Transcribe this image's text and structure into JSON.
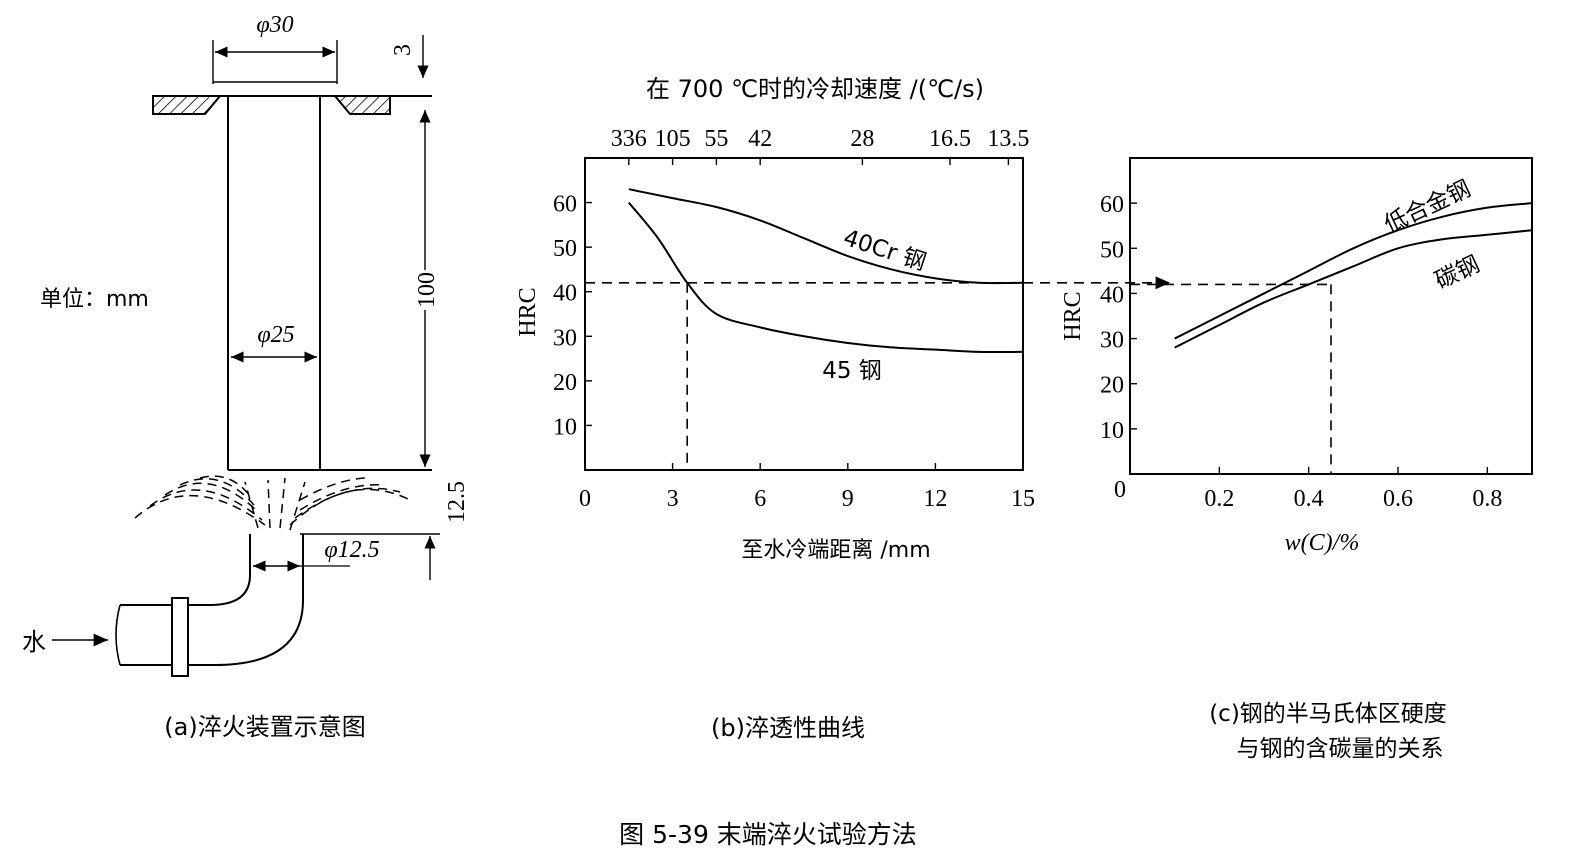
{
  "panel_a": {
    "dim_top_diameter": "φ30",
    "dim_flange": "3",
    "unit_label": "单位：mm",
    "dim_bar_diameter": "φ25",
    "dim_length": "100",
    "dim_gap": "12.5",
    "dim_nozzle": "φ12.5",
    "water_label": "水",
    "caption": "(a)淬火装置示意图"
  },
  "panel_b": {
    "top_axis_title": "在 700 ℃时的冷却速度 /(℃/s)",
    "top_ticks": [
      "336",
      "105",
      "55",
      "42",
      "28",
      "16.5",
      "13.5"
    ],
    "ylabel": "HRC",
    "xlabel": "至水冷端距离 /mm",
    "x_ticks": [
      "0",
      "3",
      "6",
      "9",
      "12",
      "15"
    ],
    "y_ticks": [
      "10",
      "20",
      "30",
      "40",
      "50",
      "60"
    ],
    "series_40cr": "40Cr 钢",
    "series_45": "45 钢",
    "caption": "(b)淬透性曲线"
  },
  "panel_c": {
    "ylabel": "HRC",
    "xlabel": "w(C)/%",
    "x_ticks": [
      "0.2",
      "0.4",
      "0.6",
      "0.8"
    ],
    "y_ticks": [
      "10",
      "20",
      "30",
      "40",
      "50",
      "60"
    ],
    "origin": "0",
    "series_low_alloy": "低合金钢",
    "series_carbon": "碳钢",
    "caption_line1": "(c)钢的半马氏体区硬度",
    "caption_line2": "与钢的含碳量的关系"
  },
  "figure_caption": "图 5-39    末端淬火试验方法",
  "chart_data": [
    {
      "type": "line",
      "xlabel": "至水冷端距离 /mm",
      "ylabel": "HRC",
      "xlim": [
        0,
        15
      ],
      "ylim": [
        0,
        70
      ],
      "series": [
        {
          "name": "40Cr 钢",
          "x": [
            1.5,
            3,
            4.5,
            6,
            7.5,
            9,
            10.5,
            12,
            13.5,
            15
          ],
          "values": [
            63,
            61,
            59,
            56,
            52,
            48,
            45,
            43,
            42,
            42
          ]
        },
        {
          "name": "45 钢",
          "x": [
            1.5,
            2.5,
            3.5,
            4.5,
            6,
            7.5,
            9,
            10.5,
            12,
            13.5,
            15
          ],
          "values": [
            60,
            52,
            42,
            35,
            32,
            30,
            28.5,
            27.5,
            27,
            26.5,
            26.5
          ]
        }
      ],
      "reference": {
        "hrc": 42,
        "distance": 3.5
      }
    },
    {
      "type": "line",
      "xlabel": "w(C)/%",
      "ylabel": "HRC",
      "xlim": [
        0,
        0.9
      ],
      "ylim": [
        0,
        70
      ],
      "series": [
        {
          "name": "低合金钢",
          "x": [
            0.1,
            0.2,
            0.3,
            0.4,
            0.5,
            0.6,
            0.7,
            0.8,
            0.9
          ],
          "values": [
            30,
            35,
            40,
            45,
            50,
            54,
            57,
            59,
            60
          ]
        },
        {
          "name": "碳钢",
          "x": [
            0.1,
            0.2,
            0.3,
            0.4,
            0.5,
            0.6,
            0.7,
            0.8,
            0.9
          ],
          "values": [
            28,
            33,
            38,
            42,
            46,
            50,
            52,
            53,
            54
          ]
        }
      ],
      "reference": {
        "hrc": 42,
        "carbon": 0.45
      }
    }
  ]
}
